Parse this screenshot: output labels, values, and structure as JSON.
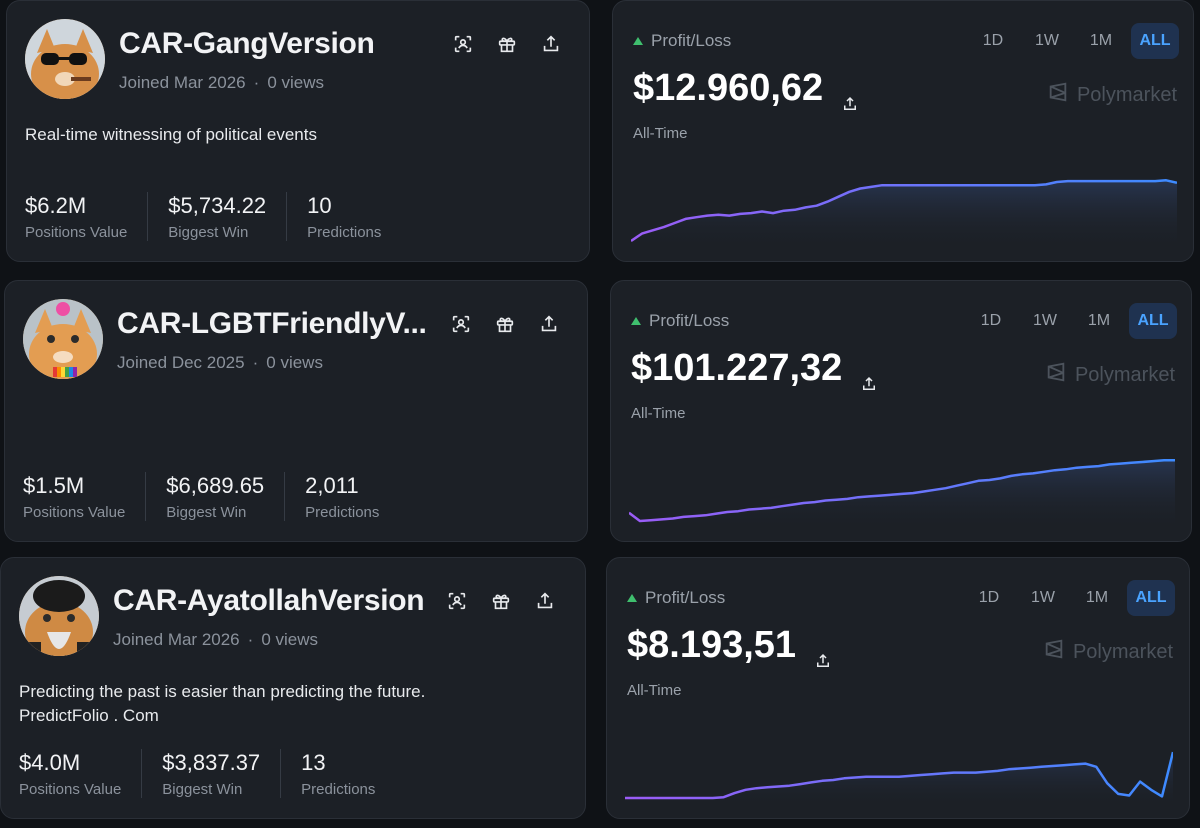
{
  "profiles": [
    {
      "username": "CAR-GangVersion",
      "joined": "Joined Mar 2026",
      "views": "0 views",
      "bio": "Real-time witnessing of political events",
      "stats": [
        {
          "value": "$6.2M",
          "label": "Positions Value"
        },
        {
          "value": "$5,734.22",
          "label": "Biggest Win"
        },
        {
          "value": "10",
          "label": "Predictions"
        }
      ],
      "pnl": {
        "label": "Profit/Loss",
        "amount": "$12.960,62",
        "period_label": "All-Time",
        "ranges": [
          "1D",
          "1W",
          "1M",
          "ALL"
        ],
        "active_range": "ALL",
        "brand": "Polymarket"
      }
    },
    {
      "username": "CAR-LGBTFriendlyV...",
      "joined": "Joined Dec 2025",
      "views": "0 views",
      "bio": "",
      "stats": [
        {
          "value": "$1.5M",
          "label": "Positions Value"
        },
        {
          "value": "$6,689.65",
          "label": "Biggest Win"
        },
        {
          "value": "2,011",
          "label": "Predictions"
        }
      ],
      "pnl": {
        "label": "Profit/Loss",
        "amount": "$101.227,32",
        "period_label": "All-Time",
        "ranges": [
          "1D",
          "1W",
          "1M",
          "ALL"
        ],
        "active_range": "ALL",
        "brand": "Polymarket"
      }
    },
    {
      "username": "CAR-AyatollahVersion",
      "joined": "Joined Mar 2026",
      "views": "0 views",
      "bio": "Predicting the past is easier than predicting the future.\nPredictFolio . Com",
      "stats": [
        {
          "value": "$4.0M",
          "label": "Positions Value"
        },
        {
          "value": "$3,837.37",
          "label": "Biggest Win"
        },
        {
          "value": "13",
          "label": "Predictions"
        }
      ],
      "pnl": {
        "label": "Profit/Loss",
        "amount": "$8.193,51",
        "period_label": "All-Time",
        "ranges": [
          "1D",
          "1W",
          "1M",
          "ALL"
        ],
        "active_range": "ALL",
        "brand": "Polymarket"
      }
    }
  ],
  "icons": {
    "actions": [
      "scan-icon",
      "gift-icon",
      "share-icon"
    ],
    "upload": "share-icon",
    "brand": "polymarket-logo-icon"
  },
  "colors": {
    "accent_blue": "#4aa3ff",
    "positive": "#3fbf6e",
    "line_start": "#9b5cf6",
    "line_end": "#3d8bff"
  },
  "chart_data": [
    {
      "type": "line",
      "series": [
        {
          "values": [
            0.0,
            0.09,
            0.13,
            0.17,
            0.22,
            0.27,
            0.29,
            0.31,
            0.32,
            0.31,
            0.33,
            0.34,
            0.36,
            0.34,
            0.37,
            0.38,
            0.41,
            0.43,
            0.48,
            0.54,
            0.6,
            0.64,
            0.66,
            0.68,
            0.68,
            0.68,
            0.68,
            0.68,
            0.68,
            0.68,
            0.68,
            0.68,
            0.68,
            0.68,
            0.68,
            0.68,
            0.68,
            0.68,
            0.69,
            0.72,
            0.73,
            0.73,
            0.73,
            0.73,
            0.73,
            0.73,
            0.73,
            0.73,
            0.73,
            0.74,
            0.71
          ]
        }
      ]
    },
    {
      "type": "line",
      "series": [
        {
          "values": [
            0.1,
            0.0,
            0.01,
            0.02,
            0.03,
            0.05,
            0.06,
            0.07,
            0.09,
            0.11,
            0.12,
            0.14,
            0.15,
            0.16,
            0.18,
            0.2,
            0.22,
            0.23,
            0.25,
            0.26,
            0.27,
            0.29,
            0.3,
            0.31,
            0.32,
            0.33,
            0.34,
            0.36,
            0.38,
            0.4,
            0.43,
            0.46,
            0.49,
            0.5,
            0.52,
            0.55,
            0.57,
            0.58,
            0.6,
            0.62,
            0.63,
            0.65,
            0.66,
            0.67,
            0.69,
            0.7,
            0.71,
            0.72,
            0.73,
            0.74,
            0.74
          ]
        }
      ]
    },
    {
      "type": "line",
      "series": [
        {
          "values": [
            0.0,
            0.0,
            0.0,
            0.0,
            0.0,
            0.0,
            0.0,
            0.0,
            0.0,
            0.01,
            0.06,
            0.1,
            0.12,
            0.13,
            0.14,
            0.15,
            0.17,
            0.19,
            0.21,
            0.22,
            0.24,
            0.25,
            0.26,
            0.26,
            0.26,
            0.26,
            0.27,
            0.28,
            0.29,
            0.3,
            0.31,
            0.31,
            0.31,
            0.32,
            0.33,
            0.35,
            0.36,
            0.37,
            0.38,
            0.39,
            0.4,
            0.41,
            0.42,
            0.38,
            0.18,
            0.05,
            0.03,
            0.2,
            0.1,
            0.02,
            0.56
          ]
        }
      ]
    }
  ]
}
